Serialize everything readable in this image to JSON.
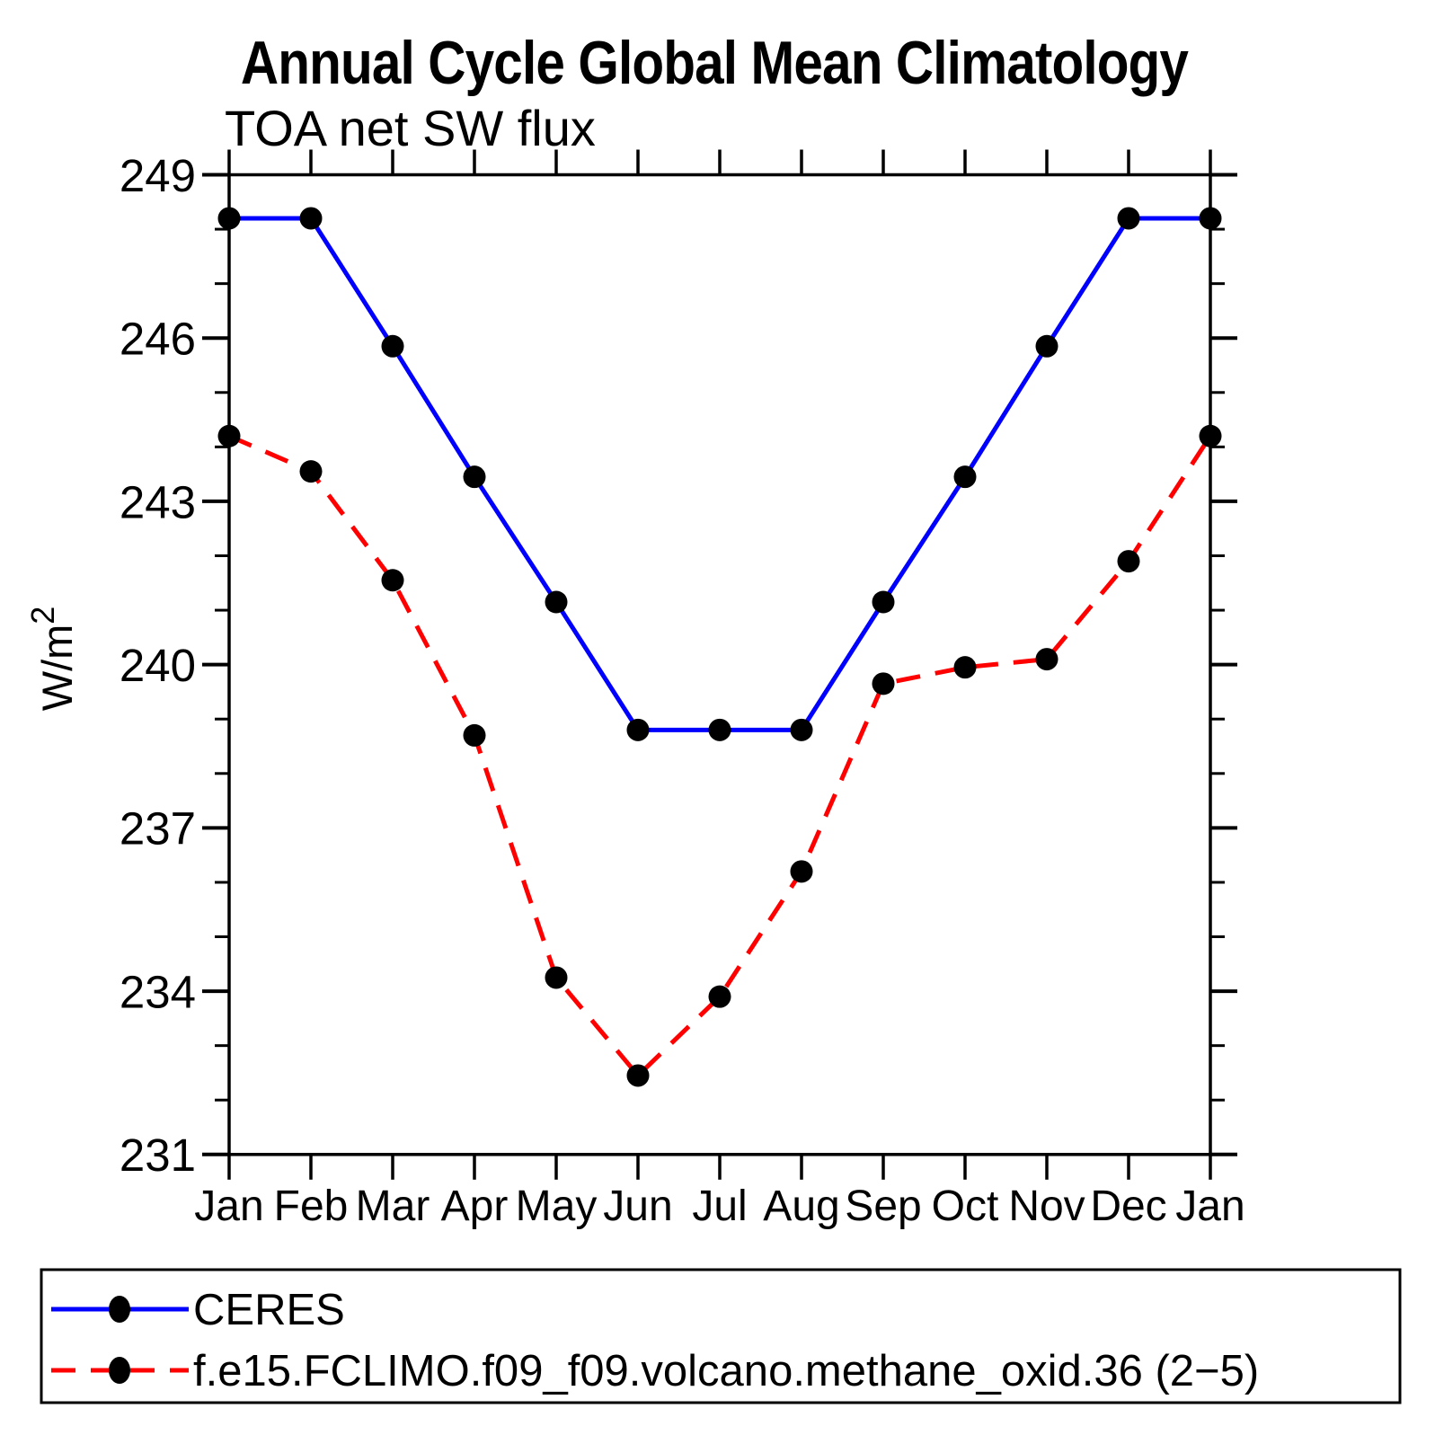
{
  "header": {
    "title": "Annual Cycle Global Mean Climatology",
    "subtitle": "TOA net SW flux"
  },
  "chart_data": {
    "type": "line",
    "title": "Annual Cycle Global Mean Climatology",
    "subtitle": "TOA net SW flux",
    "xlabel": "",
    "ylabel": "W/m²",
    "ylim": [
      231,
      249
    ],
    "y_ticks_major": [
      249,
      246,
      243,
      240,
      237,
      234,
      231
    ],
    "y_minor_step": 1,
    "grid": "off",
    "legend_position": "bottom-box",
    "x_categories": [
      "Jan",
      "Feb",
      "Mar",
      "Apr",
      "May",
      "Jun",
      "Jul",
      "Aug",
      "Sep",
      "Oct",
      "Nov",
      "Dec",
      "Jan"
    ],
    "series": [
      {
        "name": "CERES",
        "color": "#0000ff",
        "line_style": "solid",
        "marker": "filled-circle",
        "marker_color": "#000000",
        "values": [
          248.2,
          248.2,
          245.85,
          243.45,
          241.15,
          238.8,
          238.8,
          238.8,
          241.15,
          243.45,
          245.85,
          248.2,
          248.2
        ]
      },
      {
        "name": "f.e15.FCLIMO.f09_f09.volcano.methane_oxid.36 (2−5)",
        "color": "#ff0000",
        "line_style": "dashed",
        "marker": "filled-circle",
        "marker_color": "#000000",
        "values": [
          244.2,
          243.55,
          241.55,
          238.7,
          234.25,
          232.45,
          233.9,
          236.2,
          239.65,
          239.95,
          240.1,
          241.9,
          244.2
        ]
      }
    ]
  },
  "colors": {
    "background": "#ffffff",
    "axis": "#000000",
    "series_blue": "#0000ff",
    "series_red": "#ff0000",
    "marker": "#000000"
  }
}
